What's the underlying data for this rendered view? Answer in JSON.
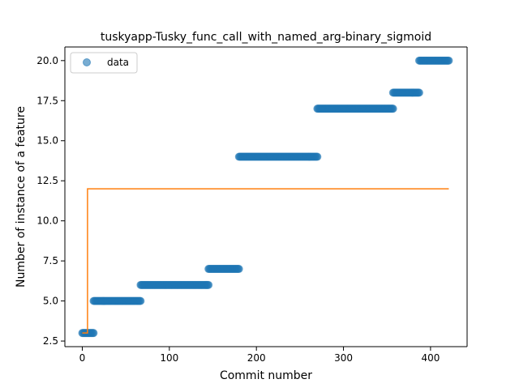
{
  "chart_data": {
    "type": "scatter",
    "title": "tuskyapp-Tusky_func_call_with_named_arg-binary_sigmoid",
    "xlabel": "Commit number",
    "ylabel": "Number of instance of a feature",
    "xlim": [
      -20,
      442
    ],
    "ylim": [
      2.15,
      20.85
    ],
    "xticks": [
      0,
      100,
      200,
      300,
      400
    ],
    "yticks": [
      2.5,
      5.0,
      7.5,
      10.0,
      12.5,
      15.0,
      17.5,
      20.0
    ],
    "xtick_labels": [
      "0",
      "100",
      "200",
      "300",
      "400"
    ],
    "ytick_labels": [
      "2.5",
      "5.0",
      "7.5",
      "10.0",
      "12.5",
      "15.0",
      "17.5",
      "20.0"
    ],
    "grid": false,
    "legend": {
      "location": "upper left",
      "entries": [
        "data"
      ]
    },
    "series": [
      {
        "name": "data",
        "kind": "scatter",
        "color": "#1f77b4",
        "segments": [
          {
            "x_start": 0,
            "x_end": 13,
            "y": 3
          },
          {
            "x_start": 13,
            "x_end": 67,
            "y": 5
          },
          {
            "x_start": 67,
            "x_end": 145,
            "y": 6
          },
          {
            "x_start": 145,
            "x_end": 180,
            "y": 7
          },
          {
            "x_start": 180,
            "x_end": 270,
            "y": 14
          },
          {
            "x_start": 270,
            "x_end": 357,
            "y": 17
          },
          {
            "x_start": 357,
            "x_end": 387,
            "y": 18
          },
          {
            "x_start": 387,
            "x_end": 421,
            "y": 20
          }
        ]
      },
      {
        "kind": "line",
        "color": "#ff7f0e",
        "x": [
          0,
          6,
          6,
          421
        ],
        "y": [
          3,
          3,
          12,
          12
        ]
      }
    ]
  }
}
